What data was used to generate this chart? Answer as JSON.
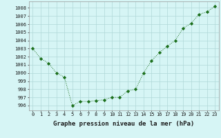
{
  "x": [
    0,
    1,
    2,
    3,
    4,
    5,
    6,
    7,
    8,
    9,
    10,
    11,
    12,
    13,
    14,
    15,
    16,
    17,
    18,
    19,
    20,
    21,
    22,
    23
  ],
  "y": [
    1003,
    1001.8,
    1001.2,
    1000,
    999.5,
    996.0,
    996.5,
    996.5,
    996.6,
    996.7,
    997.0,
    997.0,
    997.8,
    998.0,
    1000.0,
    1001.5,
    1002.5,
    1003.3,
    1004.0,
    1005.5,
    1006.1,
    1007.2,
    1007.5,
    1008.2
  ],
  "line_color": "#1a6e1a",
  "marker": "D",
  "marker_size": 2.2,
  "bg_color": "#d6f5f5",
  "grid_color": "#b0d8d8",
  "xlabel": "Graphe pression niveau de la mer (hPa)",
  "xlabel_fontsize": 6.5,
  "ylabel_ticks": [
    996,
    997,
    998,
    999,
    1000,
    1001,
    1002,
    1003,
    1004,
    1005,
    1006,
    1007,
    1008
  ],
  "ylim": [
    995.4,
    1008.8
  ],
  "xlim": [
    -0.5,
    23.5
  ],
  "xtick_labels": [
    "0",
    "1",
    "2",
    "3",
    "4",
    "5",
    "6",
    "7",
    "8",
    "9",
    "10",
    "11",
    "12",
    "13",
    "14",
    "15",
    "16",
    "17",
    "18",
    "19",
    "20",
    "21",
    "22",
    "23"
  ],
  "tick_fontsize": 5.0,
  "linewidth": 0.7
}
